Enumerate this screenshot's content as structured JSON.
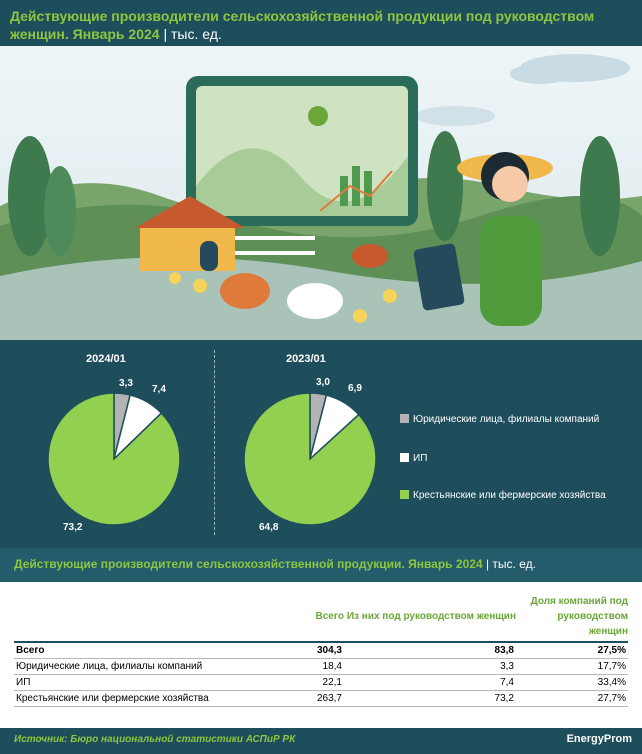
{
  "header": {
    "title": "Действующие производители сельскохозяйственной продукции под руководством женщин. Январь 2024",
    "unit": "тыс. ед."
  },
  "colors": {
    "legal": "#b3b3b3",
    "ip": "#ffffff",
    "farm": "#92d050",
    "accent": "#8dc63f",
    "bg": "#1e4d5c"
  },
  "chart_data": [
    {
      "type": "pie",
      "title": "2024/01",
      "categories": [
        "Юридические лица, филиалы компаний",
        "ИП",
        "Крестьянские или фермерские хозяйства"
      ],
      "values": [
        3.3,
        7.4,
        73.2
      ],
      "labels": [
        "3,3",
        "7,4",
        "73,2"
      ]
    },
    {
      "type": "pie",
      "title": "2023/01",
      "categories": [
        "Юридические лица, филиалы компаний",
        "ИП",
        "Крестьянские или фермерские хозяйства"
      ],
      "values": [
        3.0,
        6.9,
        64.8
      ],
      "labels": [
        "3,0",
        "6,9",
        "64,8"
      ]
    }
  ],
  "legend": [
    {
      "label": "Юридические лица, филиалы компаний",
      "color": "#b3b3b3"
    },
    {
      "label": "ИП",
      "color": "#ffffff"
    },
    {
      "label": "Крестьянские или фермерские хозяйства",
      "color": "#92d050"
    }
  ],
  "table_section": {
    "title": "Действующие производители сельскохозяйственной продукции. Январь 2024",
    "unit": "тыс. ед.",
    "columns": [
      "Всего",
      "Из них под руководством женщин",
      "Доля компаний под руководством женщин"
    ],
    "rows": [
      {
        "name": "Всего",
        "total": "304,3",
        "women": "83,8",
        "share": "27,5%"
      },
      {
        "name": "Юридические лица, филиалы компаний",
        "total": "18,4",
        "women": "3,3",
        "share": "17,7%"
      },
      {
        "name": "ИП",
        "total": "22,1",
        "women": "7,4",
        "share": "33,4%"
      },
      {
        "name": "Крестьянские или фермерские хозяйства",
        "total": "263,7",
        "women": "73,2",
        "share": "27,7%"
      }
    ]
  },
  "footer": {
    "source": "Источник: Бюро национальной статистики АСПиР РК",
    "brand": "EnergyProm"
  }
}
